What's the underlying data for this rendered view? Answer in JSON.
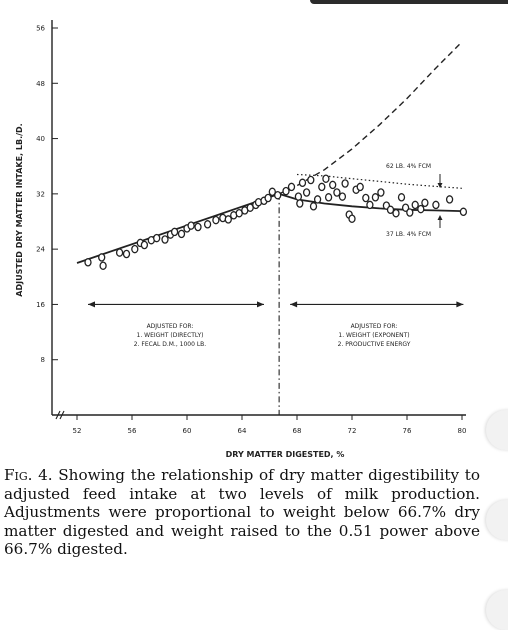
{
  "chart_data": {
    "type": "scatter",
    "xlabel": "DRY MATTER DIGESTED, %",
    "ylabel": "ADJUSTED DRY MATTER INTAKE, LB./D.",
    "xlim": [
      51,
      81
    ],
    "ylim": [
      0,
      57
    ],
    "x_ticks": [
      52,
      56,
      60,
      64,
      68,
      72,
      76,
      80
    ],
    "y_ticks": [
      8,
      16,
      24,
      32,
      40,
      48,
      56
    ],
    "breakpoint_x": 66.7,
    "regions": [
      {
        "label_lines": [
          "ADJUSTED FOR:",
          "1. WEIGHT (DIRECTLY)",
          "2. FECAL D.M., 1000 LB."
        ]
      },
      {
        "label_lines": [
          "ADJUSTED FOR:",
          "1. WEIGHT (EXPONENT)",
          "2. PRODUCTIVE ENERGY"
        ]
      }
    ],
    "annotations": [
      {
        "text": "62 LB. 4% FCM"
      },
      {
        "text": "37 LB. 4% FCM"
      }
    ],
    "fit_lines": {
      "solid_left": {
        "x": [
          52,
          66.7
        ],
        "y": [
          22,
          32
        ]
      },
      "solid_right": {
        "x": [
          66.7,
          68,
          70,
          72,
          74,
          76,
          78,
          80
        ],
        "y": [
          32,
          31.2,
          30.6,
          30.2,
          29.9,
          29.7,
          29.6,
          29.5
        ]
      },
      "dashed_upper": {
        "x": [
          66.7,
          68,
          70,
          72,
          74,
          76,
          78,
          80
        ],
        "y": [
          32,
          33.2,
          35.5,
          38.5,
          42,
          45.8,
          50,
          54
        ]
      },
      "dotted_62lb": {
        "x": [
          68,
          70,
          72,
          74,
          76,
          78,
          80
        ],
        "y": [
          34.8,
          34.6,
          34.2,
          33.8,
          33.4,
          33.1,
          32.8
        ]
      }
    },
    "points": [
      {
        "x": 52.8,
        "y": 22.1
      },
      {
        "x": 53.8,
        "y": 22.8
      },
      {
        "x": 53.9,
        "y": 21.6
      },
      {
        "x": 55.1,
        "y": 23.5
      },
      {
        "x": 55.6,
        "y": 23.3
      },
      {
        "x": 56.2,
        "y": 24.0
      },
      {
        "x": 56.6,
        "y": 24.9
      },
      {
        "x": 56.9,
        "y": 24.6
      },
      {
        "x": 57.4,
        "y": 25.3
      },
      {
        "x": 57.8,
        "y": 25.6
      },
      {
        "x": 58.4,
        "y": 25.4
      },
      {
        "x": 58.8,
        "y": 26.1
      },
      {
        "x": 59.1,
        "y": 26.5
      },
      {
        "x": 59.6,
        "y": 26.2
      },
      {
        "x": 60.0,
        "y": 27.0
      },
      {
        "x": 60.3,
        "y": 27.4
      },
      {
        "x": 60.8,
        "y": 27.2
      },
      {
        "x": 61.5,
        "y": 27.6
      },
      {
        "x": 62.1,
        "y": 28.2
      },
      {
        "x": 62.6,
        "y": 28.5
      },
      {
        "x": 63.0,
        "y": 28.3
      },
      {
        "x": 63.4,
        "y": 28.9
      },
      {
        "x": 63.8,
        "y": 29.2
      },
      {
        "x": 64.2,
        "y": 29.6
      },
      {
        "x": 64.6,
        "y": 30.0
      },
      {
        "x": 65.0,
        "y": 30.4
      },
      {
        "x": 65.2,
        "y": 30.8
      },
      {
        "x": 65.6,
        "y": 31.0
      },
      {
        "x": 65.9,
        "y": 31.4
      },
      {
        "x": 66.2,
        "y": 32.3
      },
      {
        "x": 66.6,
        "y": 31.8
      },
      {
        "x": 67.2,
        "y": 32.4
      },
      {
        "x": 67.6,
        "y": 33.0
      },
      {
        "x": 68.1,
        "y": 31.6
      },
      {
        "x": 68.2,
        "y": 30.6
      },
      {
        "x": 68.4,
        "y": 33.6
      },
      {
        "x": 68.7,
        "y": 32.2
      },
      {
        "x": 69.0,
        "y": 34.0
      },
      {
        "x": 69.2,
        "y": 30.2
      },
      {
        "x": 69.5,
        "y": 31.2
      },
      {
        "x": 69.8,
        "y": 33.0
      },
      {
        "x": 70.1,
        "y": 34.2
      },
      {
        "x": 70.3,
        "y": 31.5
      },
      {
        "x": 70.6,
        "y": 33.3
      },
      {
        "x": 70.9,
        "y": 32.2
      },
      {
        "x": 71.3,
        "y": 31.6
      },
      {
        "x": 71.5,
        "y": 33.5
      },
      {
        "x": 71.8,
        "y": 29.0
      },
      {
        "x": 72.0,
        "y": 28.4
      },
      {
        "x": 72.3,
        "y": 32.6
      },
      {
        "x": 72.6,
        "y": 33.0
      },
      {
        "x": 73.0,
        "y": 31.4
      },
      {
        "x": 73.3,
        "y": 30.4
      },
      {
        "x": 73.7,
        "y": 31.5
      },
      {
        "x": 74.1,
        "y": 32.2
      },
      {
        "x": 74.5,
        "y": 30.3
      },
      {
        "x": 74.8,
        "y": 29.7
      },
      {
        "x": 75.2,
        "y": 29.2
      },
      {
        "x": 75.6,
        "y": 31.5
      },
      {
        "x": 75.9,
        "y": 30.0
      },
      {
        "x": 76.2,
        "y": 29.3
      },
      {
        "x": 76.6,
        "y": 30.4
      },
      {
        "x": 77.0,
        "y": 29.8
      },
      {
        "x": 77.3,
        "y": 30.7
      },
      {
        "x": 78.1,
        "y": 30.4
      },
      {
        "x": 79.1,
        "y": 31.2
      },
      {
        "x": 80.1,
        "y": 29.4
      }
    ]
  },
  "caption": {
    "fig_label": "Fig. 4.",
    "text": "Showing the relationship of dry matter digestibility to adjusted feed intake at two levels of milk production. Adjustments were proportional to weight below 66.7% dry matter digested and weight raised to the 0.51 power above 66.7% digested."
  },
  "colors": {
    "ink": "#222222",
    "background": "#ffffff"
  }
}
